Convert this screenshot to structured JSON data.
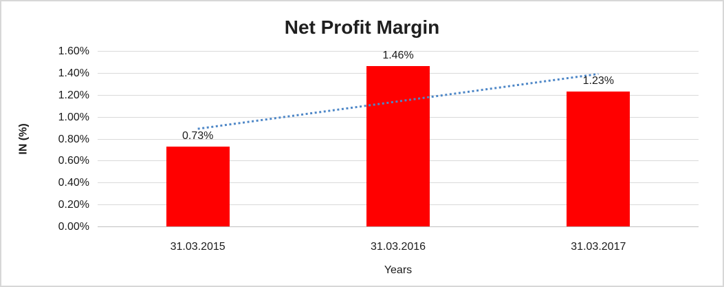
{
  "chart_data": {
    "type": "bar",
    "title": "Net Profit Margin",
    "xlabel": "Years",
    "ylabel": "IN (%)",
    "categories": [
      "31.03.2015",
      "31.03.2016",
      "31.03.2017"
    ],
    "values": [
      0.73,
      1.46,
      1.23
    ],
    "data_labels": [
      "0.73%",
      "1.46%",
      "1.23%"
    ],
    "ylim": [
      0,
      1.6
    ],
    "ytick_labels": [
      "0.00%",
      "0.20%",
      "0.40%",
      "0.60%",
      "0.80%",
      "1.00%",
      "1.20%",
      "1.40%",
      "1.60%"
    ],
    "grid": true,
    "legend": "none",
    "bar_color": "#FF0000",
    "gridline_color": "#D9D9D9",
    "axis_line_color": "#BFBFBF",
    "trendline": {
      "style": "dotted",
      "color": "#4E87C7",
      "start_value_pct": 0.89,
      "end_value_pct": 1.39
    }
  }
}
